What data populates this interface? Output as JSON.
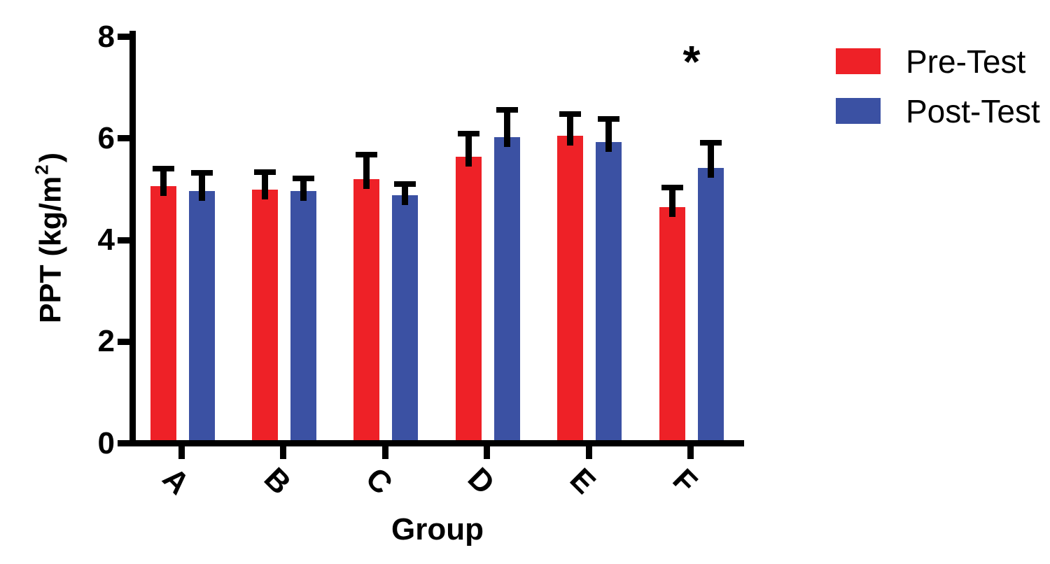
{
  "figure": {
    "background_color": "#ffffff",
    "axis_color": "#000000"
  },
  "chart_data": {
    "type": "bar",
    "title": "",
    "xlabel": "Group",
    "ylabel": "PPT (kg/m²)",
    "ylabel_parts": {
      "prefix": "PPT (kg/m",
      "superscript": "2",
      "suffix": ")"
    },
    "categories": [
      "A",
      "B",
      "C",
      "D",
      "E",
      "F"
    ],
    "series": [
      {
        "name": "Pre-Test",
        "color": "#EE2127",
        "values": [
          5.0,
          4.93,
          5.14,
          5.58,
          5.99,
          4.59
        ],
        "errors_upper": [
          0.4,
          0.4,
          0.53,
          0.51,
          0.48,
          0.44
        ]
      },
      {
        "name": "Post-Test",
        "color": "#3B51A3",
        "values": [
          4.9,
          4.9,
          4.82,
          5.96,
          5.86,
          5.35
        ],
        "errors_upper": [
          0.41,
          0.31,
          0.27,
          0.6,
          0.52,
          0.56
        ]
      }
    ],
    "ylim": [
      0,
      8
    ],
    "yticks": [
      0,
      2,
      4,
      6,
      8
    ],
    "ytick_labels": [
      "0",
      "2",
      "4",
      "6",
      "8"
    ],
    "grid": false,
    "error_bars": "upper-only",
    "legend_position": "top-right",
    "annotations": [
      {
        "text": "*",
        "group": "F",
        "position": "above-group"
      }
    ]
  },
  "legend": {
    "items": [
      {
        "label": "Pre-Test",
        "color": "#EE2127"
      },
      {
        "label": "Post-Test",
        "color": "#3B51A3"
      }
    ]
  }
}
